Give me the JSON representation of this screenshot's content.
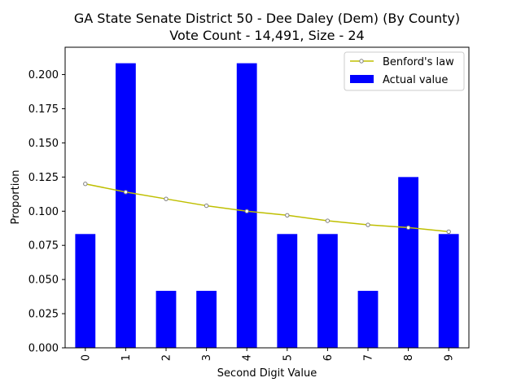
{
  "chart_data": {
    "type": "bar",
    "title": "GA State Senate District 50 - Dee Daley (Dem) (By County)",
    "subtitle": "Vote Count - 14,491, Size - 24",
    "xlabel": "Second Digit Value",
    "ylabel": "Proportion",
    "categories": [
      "0",
      "1",
      "2",
      "3",
      "4",
      "5",
      "6",
      "7",
      "8",
      "9"
    ],
    "ylim": [
      0,
      0.22
    ],
    "yticks": [
      "0.000",
      "0.025",
      "0.050",
      "0.075",
      "0.100",
      "0.125",
      "0.150",
      "0.175",
      "0.200"
    ],
    "ytick_values": [
      0,
      0.025,
      0.05,
      0.075,
      0.1,
      0.125,
      0.15,
      0.175,
      0.2
    ],
    "grid": false,
    "legend_position": "top-right",
    "series": [
      {
        "name": "Benford's law",
        "type": "line",
        "color": "#bfbf00",
        "marker_color": "#808080",
        "values": [
          0.12,
          0.114,
          0.109,
          0.104,
          0.1,
          0.097,
          0.093,
          0.09,
          0.088,
          0.085
        ]
      },
      {
        "name": "Actual value",
        "type": "bar",
        "color": "#0000ff",
        "values": [
          0.0833,
          0.2083,
          0.0417,
          0.0417,
          0.2083,
          0.0833,
          0.0833,
          0.0417,
          0.125,
          0.0833
        ]
      }
    ]
  }
}
